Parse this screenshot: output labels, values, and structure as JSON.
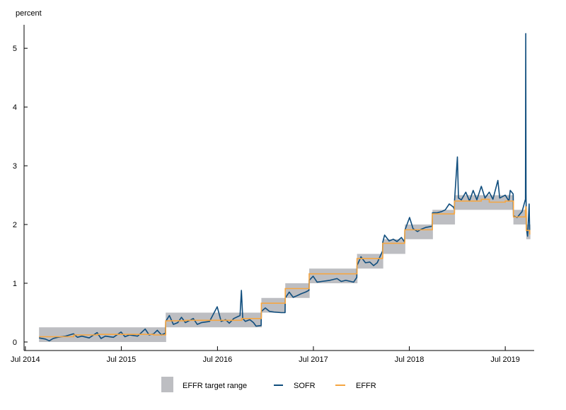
{
  "chart_data": {
    "type": "line",
    "ylabel": "percent",
    "xlabel": "",
    "ylim": [
      -0.145,
      5.4
    ],
    "xlim": [
      "2014-06-26",
      "2019-10-19"
    ],
    "y_ticks": [
      0,
      1,
      2,
      3,
      4,
      5
    ],
    "x_ticks": [
      {
        "date": "2014-07-01",
        "label": "Jul 2014"
      },
      {
        "date": "2015-07-01",
        "label": "Jul 2015"
      },
      {
        "date": "2016-07-01",
        "label": "Jul 2016"
      },
      {
        "date": "2017-07-01",
        "label": "Jul 2017"
      },
      {
        "date": "2018-07-01",
        "label": "Jul 2018"
      },
      {
        "date": "2019-07-01",
        "label": "Jul 2019"
      }
    ],
    "grid": false,
    "legend_position": "bottom",
    "legend": {
      "range": "EFFR target range",
      "sofr": "SOFR",
      "effr": "EFFR"
    },
    "colors": {
      "range": "#bdbec2",
      "sofr": "#0f4d7d",
      "effr": "#f5a642"
    },
    "target_range": [
      {
        "start": "2014-08-22",
        "end": "2015-12-16",
        "lower": 0.0,
        "upper": 0.25
      },
      {
        "start": "2015-12-17",
        "end": "2016-12-14",
        "lower": 0.25,
        "upper": 0.5
      },
      {
        "start": "2016-12-15",
        "end": "2017-03-15",
        "lower": 0.5,
        "upper": 0.75
      },
      {
        "start": "2017-03-16",
        "end": "2017-06-14",
        "lower": 0.75,
        "upper": 1.0
      },
      {
        "start": "2017-06-15",
        "end": "2017-12-13",
        "lower": 1.0,
        "upper": 1.25
      },
      {
        "start": "2017-12-14",
        "end": "2018-03-21",
        "lower": 1.25,
        "upper": 1.5
      },
      {
        "start": "2018-03-22",
        "end": "2018-06-13",
        "lower": 1.5,
        "upper": 1.75
      },
      {
        "start": "2018-06-14",
        "end": "2018-09-26",
        "lower": 1.75,
        "upper": 2.0
      },
      {
        "start": "2018-09-27",
        "end": "2018-12-19",
        "lower": 2.0,
        "upper": 2.25
      },
      {
        "start": "2018-12-20",
        "end": "2019-07-31",
        "lower": 2.25,
        "upper": 2.5
      },
      {
        "start": "2019-08-01",
        "end": "2019-09-18",
        "lower": 2.0,
        "upper": 2.25
      },
      {
        "start": "2019-09-19",
        "end": "2019-10-02",
        "lower": 1.75,
        "upper": 2.0
      }
    ],
    "series": [
      {
        "name": "SOFR",
        "x": [
          "2014-08-22",
          "2014-09-15",
          "2014-09-30",
          "2014-10-15",
          "2014-11-01",
          "2014-12-01",
          "2014-12-31",
          "2015-01-15",
          "2015-02-01",
          "2015-03-01",
          "2015-03-31",
          "2015-04-15",
          "2015-05-01",
          "2015-06-01",
          "2015-06-30",
          "2015-07-15",
          "2015-08-01",
          "2015-09-01",
          "2015-09-30",
          "2015-10-15",
          "2015-11-01",
          "2015-11-15",
          "2015-12-01",
          "2015-12-16",
          "2015-12-17",
          "2015-12-31",
          "2016-01-15",
          "2016-02-01",
          "2016-02-15",
          "2016-03-01",
          "2016-03-31",
          "2016-04-15",
          "2016-05-01",
          "2016-06-01",
          "2016-06-30",
          "2016-07-15",
          "2016-08-01",
          "2016-08-15",
          "2016-09-01",
          "2016-09-25",
          "2016-09-30",
          "2016-10-05",
          "2016-10-15",
          "2016-11-01",
          "2016-11-15",
          "2016-11-25",
          "2016-12-14",
          "2016-12-15",
          "2016-12-30",
          "2017-01-15",
          "2017-02-01",
          "2017-03-01",
          "2017-03-15",
          "2017-03-16",
          "2017-03-31",
          "2017-04-15",
          "2017-05-01",
          "2017-05-15",
          "2017-06-01",
          "2017-06-14",
          "2017-06-15",
          "2017-06-30",
          "2017-07-15",
          "2017-08-01",
          "2017-09-01",
          "2017-09-29",
          "2017-10-15",
          "2017-11-01",
          "2017-12-01",
          "2017-12-13",
          "2017-12-14",
          "2017-12-29",
          "2018-01-15",
          "2018-02-01",
          "2018-02-15",
          "2018-03-01",
          "2018-03-21",
          "2018-03-22",
          "2018-03-29",
          "2018-04-15",
          "2018-05-01",
          "2018-05-15",
          "2018-06-01",
          "2018-06-13",
          "2018-06-14",
          "2018-07-02",
          "2018-07-15",
          "2018-08-01",
          "2018-08-15",
          "2018-09-01",
          "2018-09-26",
          "2018-09-27",
          "2018-10-15",
          "2018-11-01",
          "2018-11-15",
          "2018-11-30",
          "2018-12-15",
          "2018-12-19",
          "2018-12-20",
          "2018-12-31",
          "2019-01-04",
          "2019-01-15",
          "2019-02-01",
          "2019-02-15",
          "2019-03-01",
          "2019-03-15",
          "2019-04-01",
          "2019-04-15",
          "2019-05-01",
          "2019-05-15",
          "2019-06-03",
          "2019-06-10",
          "2019-07-01",
          "2019-07-15",
          "2019-07-20",
          "2019-07-31",
          "2019-08-01",
          "2019-08-15",
          "2019-09-03",
          "2019-09-16",
          "2019-09-17",
          "2019-09-18",
          "2019-09-19",
          "2019-09-24",
          "2019-09-30",
          "2019-10-02"
        ],
        "values": [
          0.07,
          0.05,
          0.02,
          0.06,
          0.08,
          0.1,
          0.14,
          0.08,
          0.1,
          0.07,
          0.16,
          0.06,
          0.1,
          0.08,
          0.17,
          0.09,
          0.12,
          0.1,
          0.22,
          0.12,
          0.14,
          0.2,
          0.12,
          0.15,
          0.35,
          0.45,
          0.3,
          0.33,
          0.42,
          0.33,
          0.4,
          0.3,
          0.33,
          0.35,
          0.6,
          0.35,
          0.38,
          0.32,
          0.4,
          0.45,
          0.88,
          0.4,
          0.35,
          0.38,
          0.33,
          0.27,
          0.28,
          0.52,
          0.58,
          0.52,
          0.51,
          0.5,
          0.5,
          0.75,
          0.85,
          0.76,
          0.79,
          0.82,
          0.85,
          0.88,
          1.05,
          1.12,
          1.02,
          1.03,
          1.05,
          1.08,
          1.03,
          1.05,
          1.02,
          1.1,
          1.3,
          1.45,
          1.35,
          1.36,
          1.3,
          1.35,
          1.55,
          1.7,
          1.82,
          1.72,
          1.75,
          1.71,
          1.78,
          1.7,
          1.9,
          2.12,
          1.93,
          1.88,
          1.92,
          1.95,
          1.97,
          2.2,
          2.2,
          2.22,
          2.25,
          2.35,
          2.3,
          2.26,
          2.4,
          3.15,
          2.45,
          2.42,
          2.55,
          2.4,
          2.58,
          2.42,
          2.65,
          2.45,
          2.55,
          2.43,
          2.75,
          2.45,
          2.5,
          2.4,
          2.58,
          2.52,
          2.15,
          2.12,
          2.22,
          2.43,
          5.25,
          2.55,
          1.95,
          1.8,
          2.35,
          1.85
        ]
      },
      {
        "name": "EFFR",
        "x": [
          "2014-08-22",
          "2014-11-01",
          "2015-01-01",
          "2015-04-01",
          "2015-10-01",
          "2015-11-01",
          "2015-12-16",
          "2015-12-17",
          "2016-03-01",
          "2016-04-01",
          "2016-10-01",
          "2016-12-14",
          "2016-12-15",
          "2017-03-15",
          "2017-03-16",
          "2017-06-14",
          "2017-06-15",
          "2017-12-13",
          "2017-12-14",
          "2018-03-21",
          "2018-03-22",
          "2018-06-13",
          "2018-06-14",
          "2018-09-26",
          "2018-09-27",
          "2018-12-19",
          "2018-12-20",
          "2019-04-01",
          "2019-05-01",
          "2019-07-01",
          "2019-07-31",
          "2019-08-01",
          "2019-09-16",
          "2019-09-17",
          "2019-09-18",
          "2019-09-19",
          "2019-10-02"
        ],
        "values": [
          0.09,
          0.09,
          0.12,
          0.13,
          0.13,
          0.12,
          0.13,
          0.36,
          0.37,
          0.37,
          0.4,
          0.41,
          0.66,
          0.66,
          0.91,
          0.91,
          1.16,
          1.16,
          1.42,
          1.44,
          1.68,
          1.7,
          1.91,
          1.92,
          2.18,
          2.2,
          2.4,
          2.43,
          2.38,
          2.4,
          2.4,
          2.13,
          2.25,
          2.3,
          2.25,
          1.9,
          1.83
        ]
      }
    ]
  }
}
